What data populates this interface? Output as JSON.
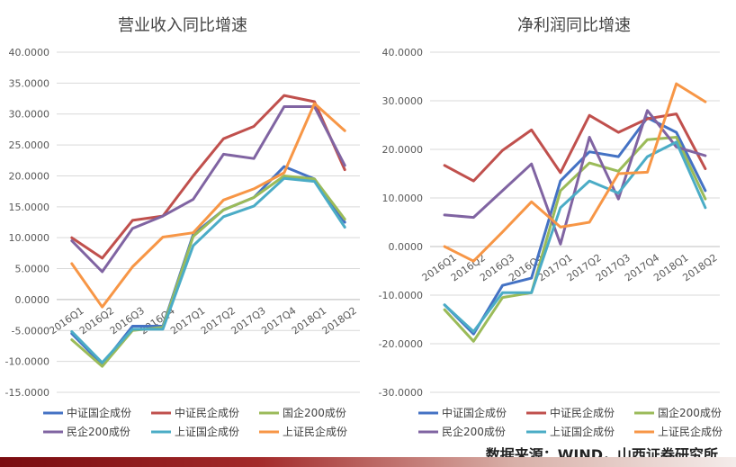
{
  "source": "数据来源：WIND，山西证券研究所",
  "colors": {
    "中证国企成份": "#4472c4",
    "中证民企成份": "#c0504d",
    "国企200成份": "#9bbb59",
    "民企200成份": "#8064a2",
    "上证国企成份": "#4bacc6",
    "上证民企成份": "#f79646",
    "footer": "#7a0c10"
  },
  "chart_data": [
    {
      "type": "line",
      "title": "营业收入同比增速",
      "categories": [
        "2016Q1",
        "2016Q2",
        "2016Q3",
        "2016Q4",
        "2017Q1",
        "2017Q2",
        "2017Q3",
        "2017Q4",
        "2018Q1",
        "2018Q2"
      ],
      "ylim": [
        -15,
        40
      ],
      "yticks": [
        "-15.0000",
        "-10.0000",
        "-5.0000",
        "0.0000",
        "5.0000",
        "10.0000",
        "15.0000",
        "20.0000",
        "25.0000",
        "30.0000",
        "35.0000",
        "40.0000"
      ],
      "grid": true,
      "legend_position": "bottom",
      "series": [
        {
          "name": "中证国企成份",
          "values": [
            -5.5,
            -10.5,
            -4.3,
            -4.3,
            10.5,
            14.5,
            16.5,
            21.5,
            19.5,
            12.5
          ]
        },
        {
          "name": "中证民企成份",
          "values": [
            10,
            6.7,
            12.8,
            13.5,
            20,
            26,
            28,
            33,
            32,
            21
          ]
        },
        {
          "name": "国企200成份",
          "values": [
            -6.5,
            -10.8,
            -5,
            -4.5,
            10.2,
            14.5,
            16.5,
            20,
            19.5,
            13
          ]
        },
        {
          "name": "民企200成份",
          "values": [
            9.5,
            4.5,
            11.5,
            13.5,
            16.2,
            23.5,
            22.8,
            31.2,
            31.2,
            21.7
          ]
        },
        {
          "name": "上证国企成份",
          "values": [
            -5.2,
            -10.2,
            -4.8,
            -4.8,
            8.7,
            13.4,
            15.1,
            19.6,
            19.1,
            11.7
          ]
        },
        {
          "name": "上证民企成份",
          "values": [
            5.8,
            -1.2,
            5.3,
            10.1,
            10.8,
            16.1,
            17.9,
            20.5,
            31.7,
            27.3
          ]
        }
      ]
    },
    {
      "type": "line",
      "title": "净利润同比增速",
      "categories": [
        "2016Q1",
        "2016Q2",
        "2016Q3",
        "2016Q4",
        "2017Q1",
        "2017Q2",
        "2017Q3",
        "2017Q4",
        "2018Q1",
        "2018Q2"
      ],
      "ylim": [
        -30,
        40
      ],
      "yticks": [
        "-30.0000",
        "-20.0000",
        "-10.0000",
        "0.0000",
        "10.0000",
        "20.0000",
        "30.0000",
        "40.0000"
      ],
      "grid": true,
      "legend_position": "bottom",
      "series": [
        {
          "name": "中证国企成份",
          "values": [
            -12,
            -18,
            -8,
            -6.5,
            13.5,
            19.5,
            18.5,
            26.5,
            23.5,
            11.5
          ]
        },
        {
          "name": "中证民企成份",
          "values": [
            16.7,
            13.5,
            19.8,
            24,
            15.2,
            27,
            23.5,
            26.3,
            27.3,
            16
          ]
        },
        {
          "name": "国企200成份",
          "values": [
            -13,
            -19.5,
            -10.5,
            -9.5,
            11.5,
            17.2,
            15.5,
            22,
            22.5,
            9.8
          ]
        },
        {
          "name": "民企200成份",
          "values": [
            6.5,
            6,
            11.5,
            17,
            0.5,
            22.5,
            9.8,
            28,
            20.5,
            18.7
          ]
        },
        {
          "name": "上证国企成份",
          "values": [
            -12,
            -17.5,
            -9.5,
            -9.5,
            8,
            13.5,
            11,
            18.5,
            21.5,
            8
          ]
        },
        {
          "name": "上证民企成份",
          "values": [
            0,
            -3,
            3,
            9.2,
            4,
            5,
            15,
            15.3,
            33.5,
            29.8
          ]
        }
      ]
    }
  ]
}
